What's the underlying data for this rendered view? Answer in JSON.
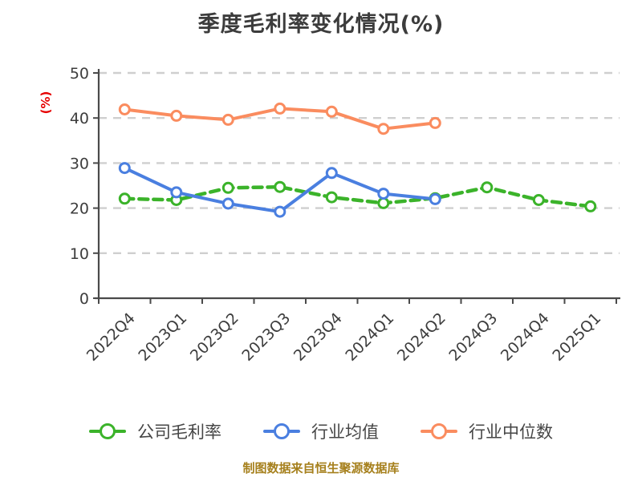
{
  "chart_data": {
    "type": "line",
    "title": "季度毛利率变化情况(%)",
    "ylabel": "(%)",
    "ylabel_color": "#e60000",
    "categories": [
      "2022Q4",
      "2023Q1",
      "2023Q2",
      "2023Q3",
      "2023Q4",
      "2024Q1",
      "2024Q2",
      "2024Q3",
      "2024Q4",
      "2025Q1"
    ],
    "series": [
      {
        "name": "公司毛利率",
        "color": "#3bb32a",
        "line_style": "dashed",
        "values": [
          22.1,
          21.8,
          24.5,
          24.7,
          22.4,
          21.1,
          22.2,
          24.6,
          21.8,
          20.4
        ]
      },
      {
        "name": "行业均值",
        "color": "#4a7fe0",
        "line_style": "solid",
        "values": [
          28.9,
          23.5,
          21.0,
          19.2,
          27.8,
          23.2,
          22.0,
          null,
          null,
          null
        ]
      },
      {
        "name": "行业中位数",
        "color": "#fa8c5f",
        "line_style": "solid",
        "values": [
          41.9,
          40.5,
          39.6,
          42.1,
          41.4,
          37.6,
          38.9,
          null,
          null,
          null
        ]
      }
    ],
    "ylim": [
      0,
      50
    ],
    "yticks": [
      0,
      10,
      20,
      30,
      40,
      50
    ],
    "grid": true,
    "grid_color": "#cfcfcf",
    "legend_position": "bottom",
    "marker": "circle-white-fill"
  },
  "footer": {
    "text": "制图数据来自恒生聚源数据库",
    "color": "#a6801d"
  }
}
